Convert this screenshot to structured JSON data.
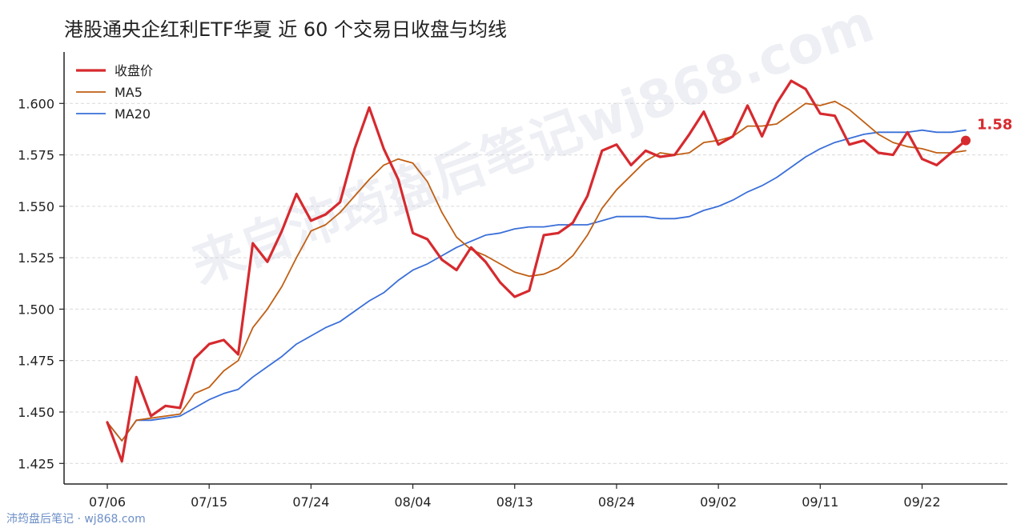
{
  "title": "港股通央企红利ETF华夏 近 60 个交易日收盘与均线",
  "watermark": "来自沛筠盘后笔记wj868.com",
  "footer": "沛筠盘后笔记 · wj868.com",
  "colors": {
    "close": "#d62a2f",
    "ma5": "#c05f14",
    "ma20": "#3a6fd8",
    "grid": "#d9d9d9",
    "axis": "#222222"
  },
  "chart_data": {
    "type": "line",
    "xlabel": "",
    "ylabel": "",
    "ylim": [
      1.415,
      1.625
    ],
    "yticks": [
      1.425,
      1.45,
      1.475,
      1.5,
      1.525,
      1.55,
      1.575,
      1.6
    ],
    "ytick_labels": [
      "1.425",
      "1.450",
      "1.475",
      "1.500",
      "1.525",
      "1.550",
      "1.575",
      "1.600"
    ],
    "xtick_index": [
      0,
      7,
      14,
      21,
      28,
      35,
      42,
      49,
      56
    ],
    "xtick_labels": [
      "07/06",
      "07/15",
      "07/24",
      "08/04",
      "08/13",
      "08/24",
      "09/02",
      "09/11",
      "09/22"
    ],
    "grid": "horizontal",
    "legend_position": "top-left",
    "end_label": "1.58",
    "series": [
      {
        "name": "收盘价",
        "values": [
          1.445,
          1.426,
          1.467,
          1.448,
          1.453,
          1.452,
          1.476,
          1.483,
          1.485,
          1.478,
          1.532,
          1.523,
          1.538,
          1.556,
          1.543,
          1.546,
          1.552,
          1.578,
          1.598,
          1.578,
          1.563,
          1.537,
          1.534,
          1.524,
          1.519,
          1.53,
          1.523,
          1.513,
          1.506,
          1.509,
          1.536,
          1.537,
          1.542,
          1.555,
          1.577,
          1.58,
          1.57,
          1.577,
          1.574,
          1.575,
          1.585,
          1.596,
          1.58,
          1.584,
          1.599,
          1.584,
          1.6,
          1.611,
          1.607,
          1.595,
          1.594,
          1.58,
          1.582,
          1.576,
          1.575,
          1.586,
          1.573,
          1.57,
          1.576,
          1.582
        ]
      },
      {
        "name": "MA5",
        "values": [
          1.445,
          1.436,
          1.446,
          1.447,
          1.448,
          1.449,
          1.459,
          1.462,
          1.47,
          1.475,
          1.491,
          1.5,
          1.511,
          1.525,
          1.538,
          1.541,
          1.547,
          1.555,
          1.563,
          1.57,
          1.573,
          1.571,
          1.562,
          1.547,
          1.535,
          1.529,
          1.526,
          1.522,
          1.518,
          1.516,
          1.517,
          1.52,
          1.526,
          1.536,
          1.549,
          1.558,
          1.565,
          1.572,
          1.576,
          1.575,
          1.576,
          1.581,
          1.582,
          1.584,
          1.589,
          1.589,
          1.59,
          1.595,
          1.6,
          1.599,
          1.601,
          1.597,
          1.591,
          1.585,
          1.581,
          1.579,
          1.578,
          1.576,
          1.576,
          1.577
        ]
      },
      {
        "name": "MA20",
        "values": [
          1.445,
          1.436,
          1.446,
          1.446,
          1.447,
          1.448,
          1.452,
          1.456,
          1.459,
          1.461,
          1.467,
          1.472,
          1.477,
          1.483,
          1.487,
          1.491,
          1.494,
          1.499,
          1.504,
          1.508,
          1.514,
          1.519,
          1.522,
          1.526,
          1.53,
          1.533,
          1.536,
          1.537,
          1.539,
          1.54,
          1.54,
          1.541,
          1.541,
          1.541,
          1.543,
          1.545,
          1.545,
          1.545,
          1.544,
          1.544,
          1.545,
          1.548,
          1.55,
          1.553,
          1.557,
          1.56,
          1.564,
          1.569,
          1.574,
          1.578,
          1.581,
          1.583,
          1.585,
          1.586,
          1.586,
          1.586,
          1.587,
          1.586,
          1.586,
          1.587
        ]
      }
    ]
  }
}
